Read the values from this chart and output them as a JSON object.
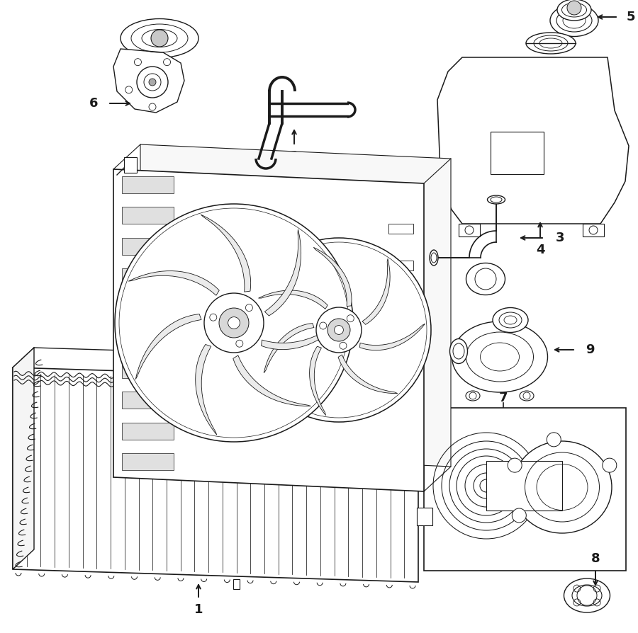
{
  "bg_color": "#ffffff",
  "line_color": "#1a1a1a",
  "lw": 1.0,
  "label_fontsize": 13,
  "fig_w": 9.0,
  "fig_h": 8.94,
  "dpi": 100
}
